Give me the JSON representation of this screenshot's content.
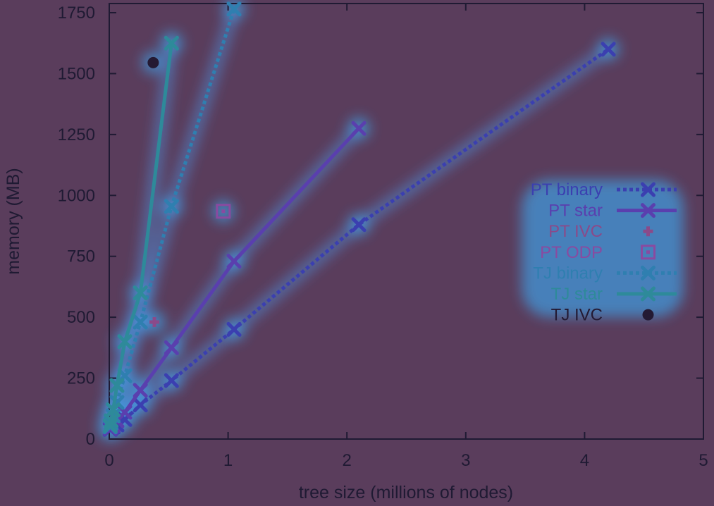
{
  "chart_data": {
    "type": "line",
    "xlabel": "tree size (millions of nodes)",
    "ylabel": "memory (MB)",
    "xlim": [
      0,
      5
    ],
    "ylim": [
      0,
      1800
    ],
    "x_ticks": [
      0,
      1,
      2,
      3,
      4,
      5
    ],
    "y_ticks": [
      0,
      250,
      500,
      750,
      1000,
      1250,
      1500,
      1750
    ],
    "grid": false,
    "legend_position": "right",
    "series": [
      {
        "name": "PT binary",
        "style": "dotted-line-x",
        "color": "#3b3fb0",
        "x": [
          0.008,
          0.016,
          0.033,
          0.065,
          0.131,
          0.262,
          0.524,
          1.05,
          2.1,
          4.2
        ],
        "y": [
          40,
          45,
          50,
          58,
          80,
          140,
          240,
          450,
          880,
          1600
        ]
      },
      {
        "name": "PT star",
        "style": "solid-line-x",
        "color": "#5a3fae",
        "x": [
          0.008,
          0.016,
          0.033,
          0.065,
          0.131,
          0.262,
          0.524,
          1.05,
          2.1
        ],
        "y": [
          42,
          48,
          55,
          75,
          110,
          200,
          375,
          730,
          1275
        ]
      },
      {
        "name": "PT IVC",
        "style": "plus",
        "color": "#8a4a8a",
        "x": [
          0.38
        ],
        "y": [
          480
        ]
      },
      {
        "name": "PT ODP",
        "style": "square-dot",
        "color": "#8a4aa0",
        "x": [
          0.96
        ],
        "y": [
          935
        ]
      },
      {
        "name": "TJ binary",
        "style": "dotted-line-x",
        "color": "#2f7fb0",
        "x": [
          0.008,
          0.016,
          0.033,
          0.065,
          0.131,
          0.262,
          0.524,
          1.05
        ],
        "y": [
          50,
          65,
          95,
          150,
          260,
          480,
          955,
          1765
        ]
      },
      {
        "name": "TJ star",
        "style": "solid-line-x",
        "color": "#2e8a9a",
        "x": [
          0.008,
          0.016,
          0.033,
          0.065,
          0.131,
          0.262,
          0.524
        ],
        "y": [
          55,
          75,
          120,
          220,
          400,
          600,
          1625
        ]
      },
      {
        "name": "TJ IVC",
        "style": "dot",
        "color": "#241a33",
        "x": [
          0.37
        ],
        "y": [
          1545
        ]
      }
    ]
  }
}
